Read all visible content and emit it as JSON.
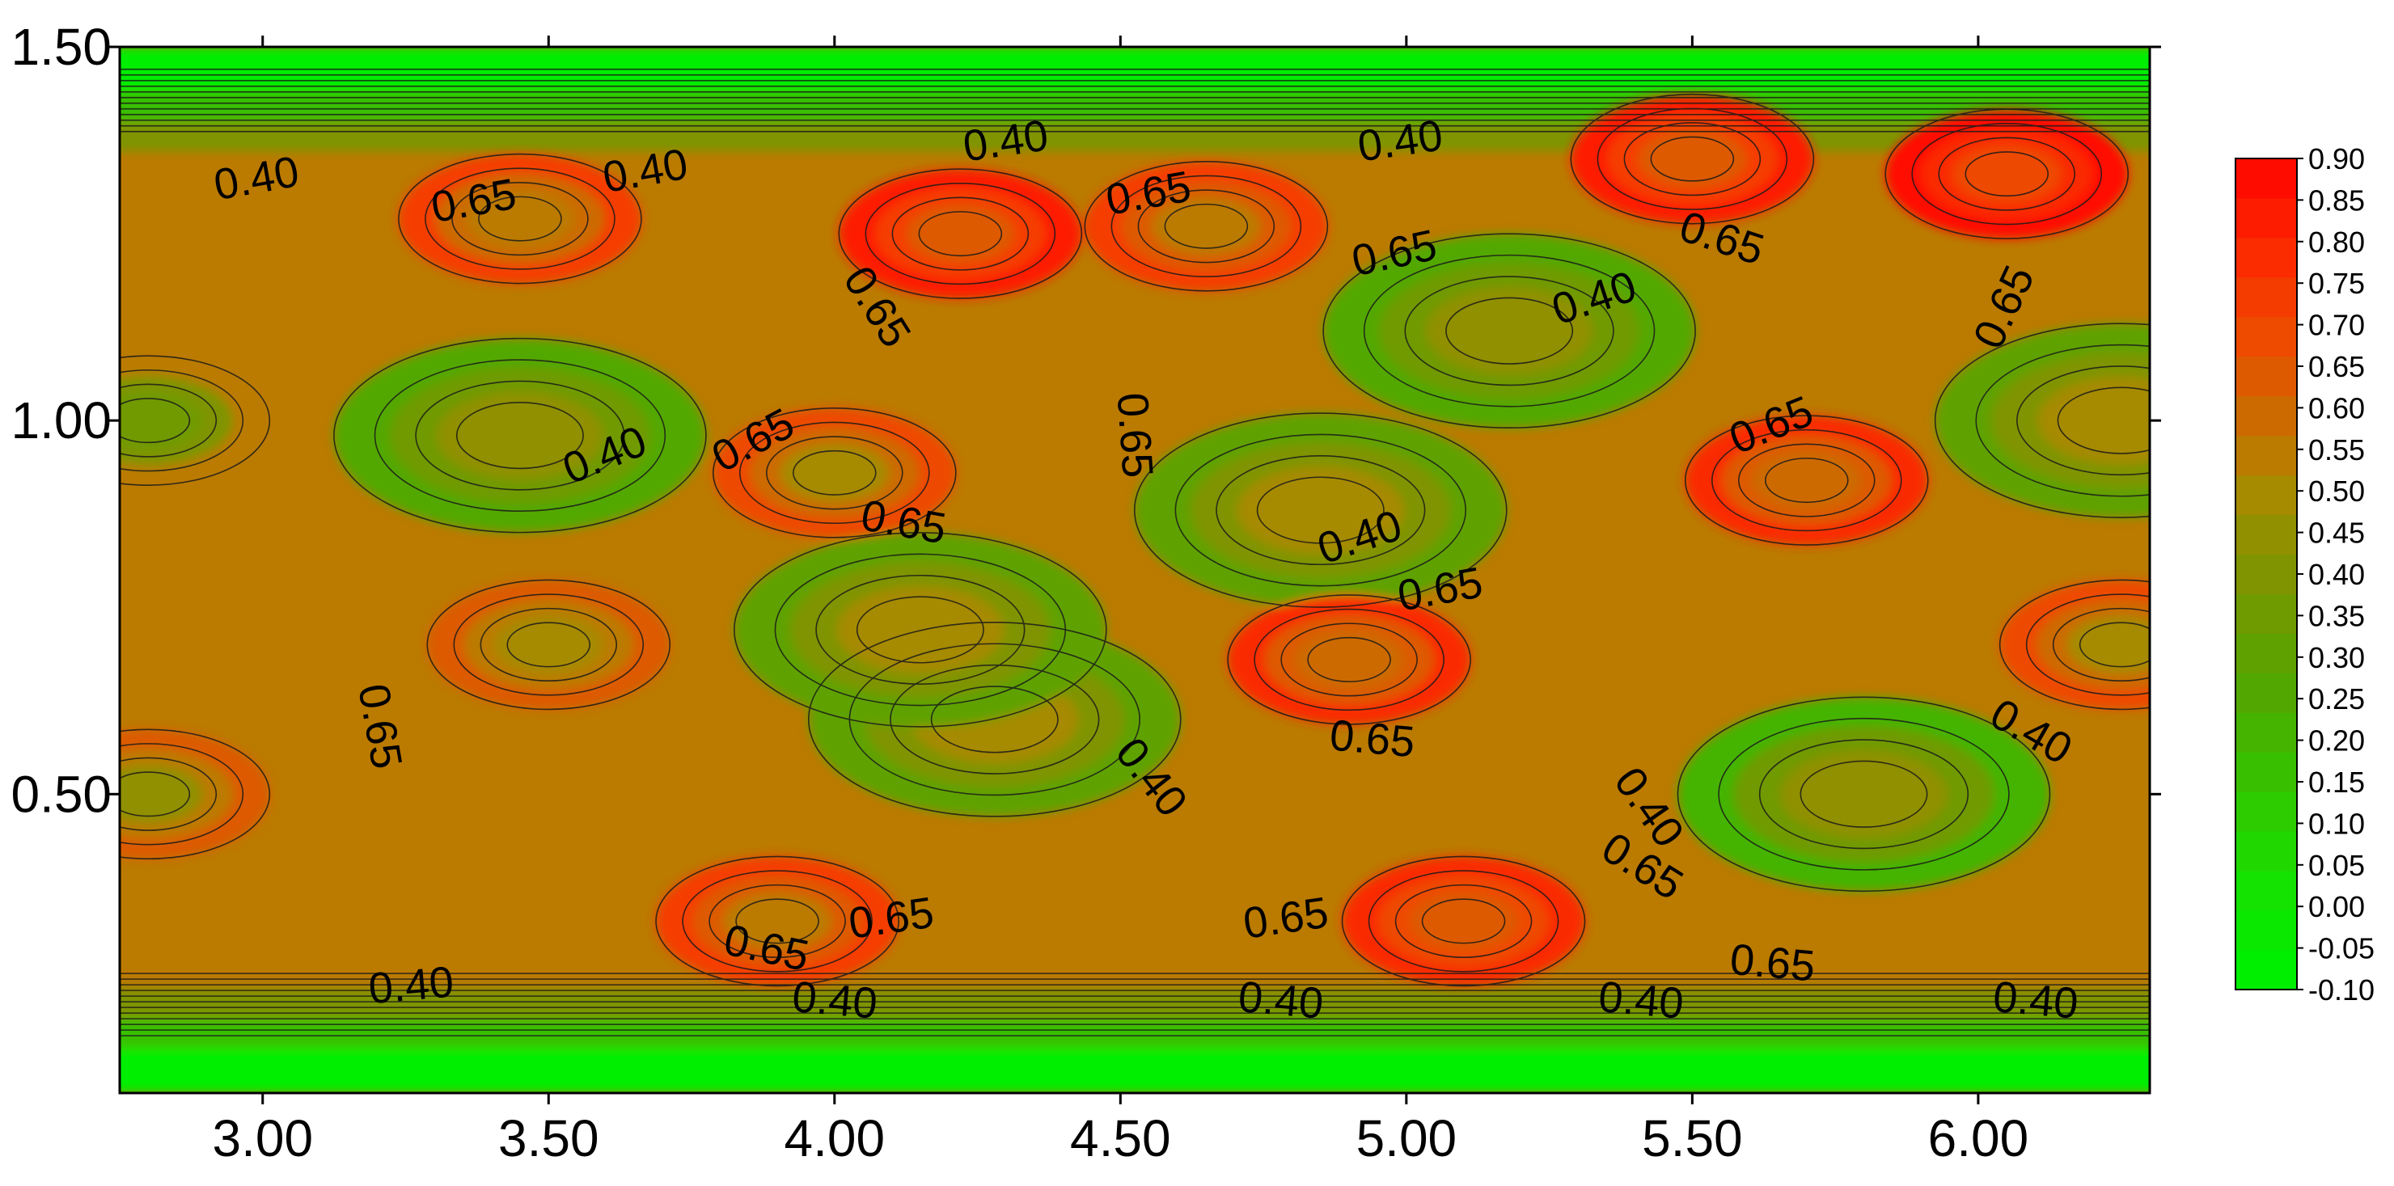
{
  "chart_data": {
    "type": "heatmap",
    "subtype": "filled-contour",
    "title": "",
    "xlabel": "",
    "ylabel": "",
    "xlim": [
      2.75,
      6.3
    ],
    "ylim": [
      0.1,
      1.5
    ],
    "x_ticks": [
      3.0,
      3.5,
      4.0,
      4.5,
      5.0,
      5.5,
      6.0
    ],
    "x_tick_labels": [
      "3.00",
      "3.50",
      "4.00",
      "4.50",
      "5.00",
      "5.50",
      "6.00"
    ],
    "y_ticks": [
      0.5,
      1.0,
      1.5
    ],
    "y_tick_labels": [
      "0.50",
      "1.00",
      "1.50"
    ],
    "colorbar": {
      "levels": [
        -0.1,
        -0.05,
        0.0,
        0.05,
        0.1,
        0.15,
        0.2,
        0.25,
        0.3,
        0.35,
        0.4,
        0.45,
        0.5,
        0.55,
        0.6,
        0.65,
        0.7,
        0.75,
        0.8,
        0.85,
        0.9
      ],
      "labels": [
        "-0.10",
        "-0.05",
        "0.00",
        "0.05",
        "0.10",
        "0.15",
        "0.20",
        "0.25",
        "0.30",
        "0.35",
        "0.40",
        "0.45",
        "0.50",
        "0.55",
        "0.60",
        "0.65",
        "0.70",
        "0.75",
        "0.80",
        "0.85",
        "0.90"
      ],
      "colors": [
        "#00ee00",
        "#0be800",
        "#14e200",
        "#20d800",
        "#2ccc00",
        "#38c000",
        "#44b400",
        "#52a800",
        "#5fa200",
        "#6f9a00",
        "#7f9400",
        "#909000",
        "#a68a00",
        "#bb7a00",
        "#cc6a00",
        "#dd5a00",
        "#ee4a00",
        "#f53c00",
        "#fa2c00",
        "#fd1c00",
        "#ff0c00"
      ],
      "placement": "right"
    },
    "grid": false,
    "z_samples": [
      {
        "x": 3.45,
        "y": 0.98,
        "z": 0.27
      },
      {
        "x": 5.18,
        "y": 1.12,
        "z": 0.26
      },
      {
        "x": 4.85,
        "y": 0.88,
        "z": 0.32
      },
      {
        "x": 4.28,
        "y": 0.6,
        "z": 0.3
      },
      {
        "x": 4.15,
        "y": 0.72,
        "z": 0.3
      },
      {
        "x": 5.8,
        "y": 0.5,
        "z": 0.24
      },
      {
        "x": 6.25,
        "y": 1.0,
        "z": 0.3
      },
      {
        "x": 4.22,
        "y": 1.25,
        "z": 0.86
      },
      {
        "x": 5.5,
        "y": 1.35,
        "z": 0.88
      },
      {
        "x": 6.05,
        "y": 1.33,
        "z": 0.92
      },
      {
        "x": 5.7,
        "y": 0.92,
        "z": 0.8
      },
      {
        "x": 4.9,
        "y": 0.68,
        "z": 0.8
      },
      {
        "x": 5.1,
        "y": 0.33,
        "z": 0.85
      },
      {
        "x": 3.9,
        "y": 0.33,
        "z": 0.78
      },
      {
        "x": 3.5,
        "y": 0.7,
        "z": 0.7
      },
      {
        "x": 4.65,
        "y": 1.26,
        "z": 0.78
      },
      {
        "x": 3.45,
        "y": 1.27,
        "z": 0.75
      },
      {
        "x": 2.8,
        "y": 0.5,
        "z": 0.68
      },
      {
        "x": 2.8,
        "y": 1.0,
        "z": 0.55
      },
      {
        "x": 6.25,
        "y": 0.7,
        "z": 0.74
      },
      {
        "x": 4.0,
        "y": 0.93,
        "z": 0.74
      }
    ],
    "contour_labels": [
      {
        "text": "0.40",
        "x": 2.99,
        "y": 1.32,
        "angle": -10
      },
      {
        "text": "0.65",
        "x": 3.37,
        "y": 1.29,
        "angle": -10
      },
      {
        "text": "0.40",
        "x": 3.67,
        "y": 1.33,
        "angle": -10
      },
      {
        "text": "0.40",
        "x": 4.3,
        "y": 1.37,
        "angle": -8
      },
      {
        "text": "0.65",
        "x": 4.55,
        "y": 1.3,
        "angle": -10
      },
      {
        "text": "0.40",
        "x": 4.99,
        "y": 1.37,
        "angle": -8
      },
      {
        "text": "0.65",
        "x": 4.98,
        "y": 1.22,
        "angle": -12
      },
      {
        "text": "0.65",
        "x": 5.55,
        "y": 1.24,
        "angle": 18
      },
      {
        "text": "0.40",
        "x": 5.33,
        "y": 1.16,
        "angle": -18
      },
      {
        "text": "0.65",
        "x": 6.05,
        "y": 1.15,
        "angle": -65
      },
      {
        "text": "0.65",
        "x": 4.07,
        "y": 1.15,
        "angle": 58
      },
      {
        "text": "0.40",
        "x": 3.6,
        "y": 0.95,
        "angle": -22
      },
      {
        "text": "0.65",
        "x": 3.86,
        "y": 0.97,
        "angle": -28
      },
      {
        "text": "0.65",
        "x": 4.12,
        "y": 0.86,
        "angle": 10
      },
      {
        "text": "0.65",
        "x": 4.52,
        "y": 0.98,
        "angle": 86
      },
      {
        "text": "0.65",
        "x": 5.64,
        "y": 0.99,
        "angle": -22
      },
      {
        "text": "0.40",
        "x": 4.92,
        "y": 0.84,
        "angle": -18
      },
      {
        "text": "0.65",
        "x": 5.06,
        "y": 0.77,
        "angle": -10
      },
      {
        "text": "0.65",
        "x": 3.2,
        "y": 0.59,
        "angle": 80
      },
      {
        "text": "0.40",
        "x": 4.55,
        "y": 0.52,
        "angle": 52
      },
      {
        "text": "0.65",
        "x": 4.94,
        "y": 0.57,
        "angle": 5
      },
      {
        "text": "0.40",
        "x": 5.42,
        "y": 0.48,
        "angle": 55
      },
      {
        "text": "0.65",
        "x": 5.41,
        "y": 0.4,
        "angle": 32
      },
      {
        "text": "0.40",
        "x": 6.09,
        "y": 0.58,
        "angle": 30
      },
      {
        "text": "0.65",
        "x": 4.1,
        "y": 0.33,
        "angle": -8
      },
      {
        "text": "0.65",
        "x": 4.79,
        "y": 0.33,
        "angle": -8
      },
      {
        "text": "0.65",
        "x": 3.88,
        "y": 0.29,
        "angle": 12
      },
      {
        "text": "0.65",
        "x": 5.64,
        "y": 0.27,
        "angle": 5
      },
      {
        "text": "0.40",
        "x": 3.26,
        "y": 0.24,
        "angle": -5
      },
      {
        "text": "0.40",
        "x": 4.0,
        "y": 0.22,
        "angle": 5
      },
      {
        "text": "0.40",
        "x": 4.78,
        "y": 0.22,
        "angle": 5
      },
      {
        "text": "0.40",
        "x": 5.41,
        "y": 0.22,
        "angle": 5
      },
      {
        "text": "0.40",
        "x": 6.1,
        "y": 0.22,
        "angle": 5
      }
    ]
  }
}
